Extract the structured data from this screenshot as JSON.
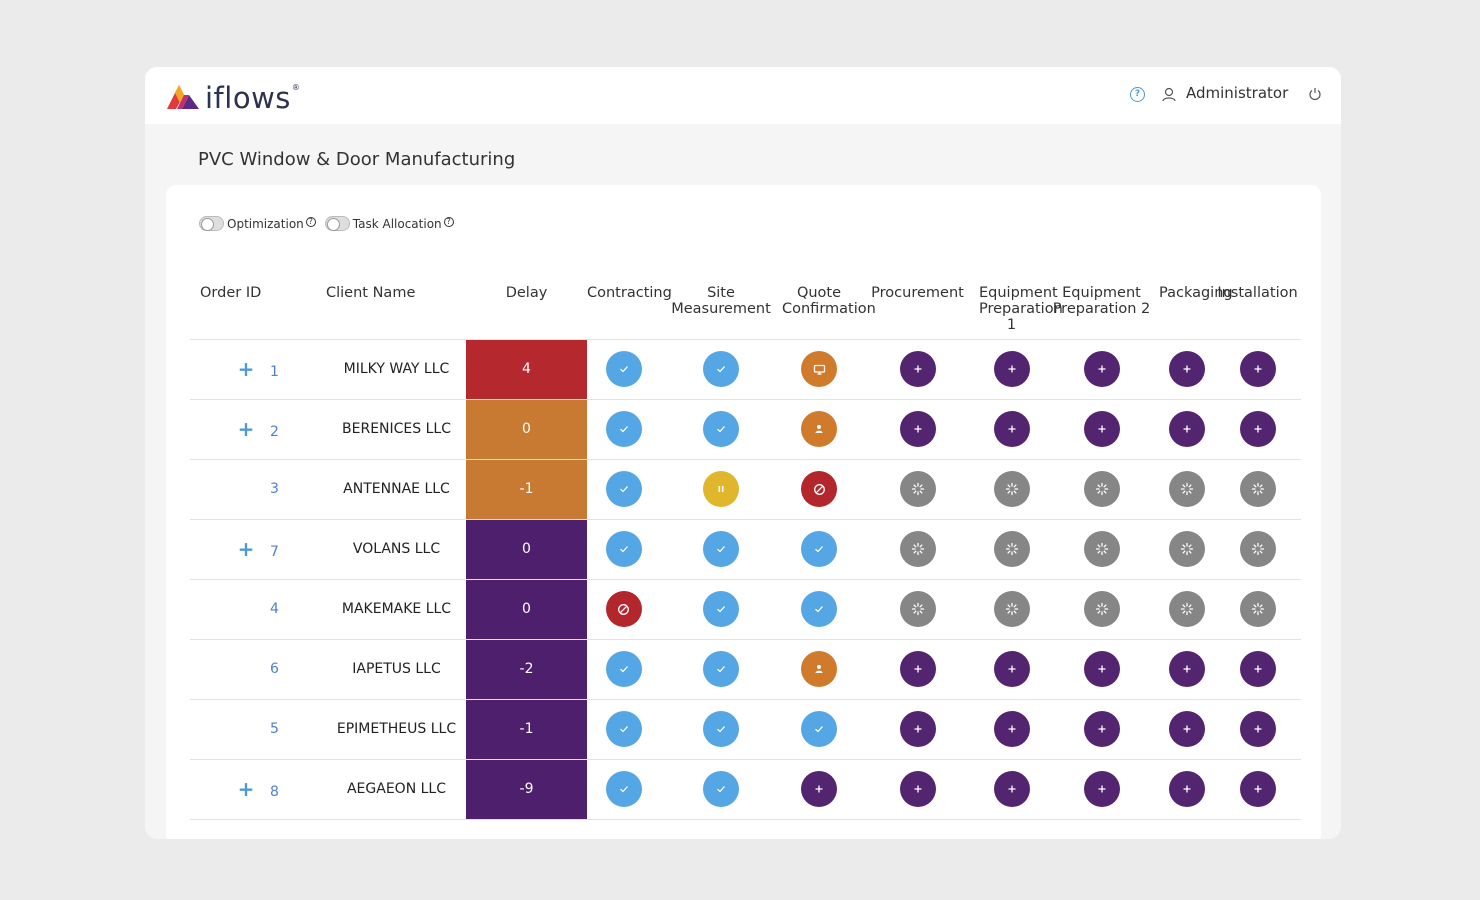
{
  "header": {
    "logo_text": "iflows",
    "logo_mark": "®",
    "user_name": "Administrator"
  },
  "page": {
    "title": "PVC Window & Door Manufacturing"
  },
  "toggles": [
    {
      "label": "Optimization",
      "on": false
    },
    {
      "label": "Task Allocation",
      "on": false
    }
  ],
  "columns": {
    "order_id": "Order ID",
    "client": "Client Name",
    "delay": "Delay",
    "stages": [
      "Contracting",
      "Site Measurement",
      "Quote Confirmation",
      "Procurement",
      "Equipment Preparation 1",
      "Equipment Preparation 2",
      "Packaging",
      "Installation"
    ]
  },
  "status_icons": {
    "done": "check-icon",
    "add": "plus-icon",
    "wait": "spinner-icon",
    "blocked": "blocked-icon",
    "paused": "pause-icon",
    "person": "person-icon",
    "screen": "monitor-icon"
  },
  "status_colors": {
    "done": "#55a6e4",
    "add": "#532470",
    "wait": "#868686",
    "blocked": "#b3262c",
    "paused": "#e0b62c",
    "person": "#d07a2c",
    "screen": "#d07a2c"
  },
  "delay_colors": {
    "red": "#b5282d",
    "orange": "#c87a32",
    "purple": "#4e1f6c"
  },
  "rows": [
    {
      "expandable": true,
      "id": "1",
      "client": "MILKY WAY LLC",
      "delay": "4",
      "delay_color": "red",
      "stages": [
        "done",
        "done",
        "screen",
        "add",
        "add",
        "add",
        "add",
        "add"
      ]
    },
    {
      "expandable": true,
      "id": "2",
      "client": "BERENICES LLC",
      "delay": "0",
      "delay_color": "orange",
      "stages": [
        "done",
        "done",
        "person",
        "add",
        "add",
        "add",
        "add",
        "add"
      ]
    },
    {
      "expandable": false,
      "id": "3",
      "client": "ANTENNAE LLC",
      "delay": "-1",
      "delay_color": "orange",
      "stages": [
        "done",
        "paused",
        "blocked",
        "wait",
        "wait",
        "wait",
        "wait",
        "wait"
      ]
    },
    {
      "expandable": true,
      "id": "7",
      "client": "VOLANS LLC",
      "delay": "0",
      "delay_color": "purple",
      "stages": [
        "done",
        "done",
        "done",
        "wait",
        "wait",
        "wait",
        "wait",
        "wait"
      ]
    },
    {
      "expandable": false,
      "id": "4",
      "client": "MAKEMAKE LLC",
      "delay": "0",
      "delay_color": "purple",
      "stages": [
        "blocked",
        "done",
        "done",
        "wait",
        "wait",
        "wait",
        "wait",
        "wait"
      ]
    },
    {
      "expandable": false,
      "id": "6",
      "client": "IAPETUS LLC",
      "delay": "-2",
      "delay_color": "purple",
      "stages": [
        "done",
        "done",
        "person",
        "add",
        "add",
        "add",
        "add",
        "add"
      ]
    },
    {
      "expandable": false,
      "id": "5",
      "client": "EPIMETHEUS LLC",
      "delay": "-1",
      "delay_color": "purple",
      "stages": [
        "done",
        "done",
        "done",
        "add",
        "add",
        "add",
        "add",
        "add"
      ]
    },
    {
      "expandable": true,
      "id": "8",
      "client": "AEGAEON LLC",
      "delay": "-9",
      "delay_color": "purple",
      "stages": [
        "done",
        "done",
        "add",
        "add",
        "add",
        "add",
        "add",
        "add"
      ]
    }
  ]
}
